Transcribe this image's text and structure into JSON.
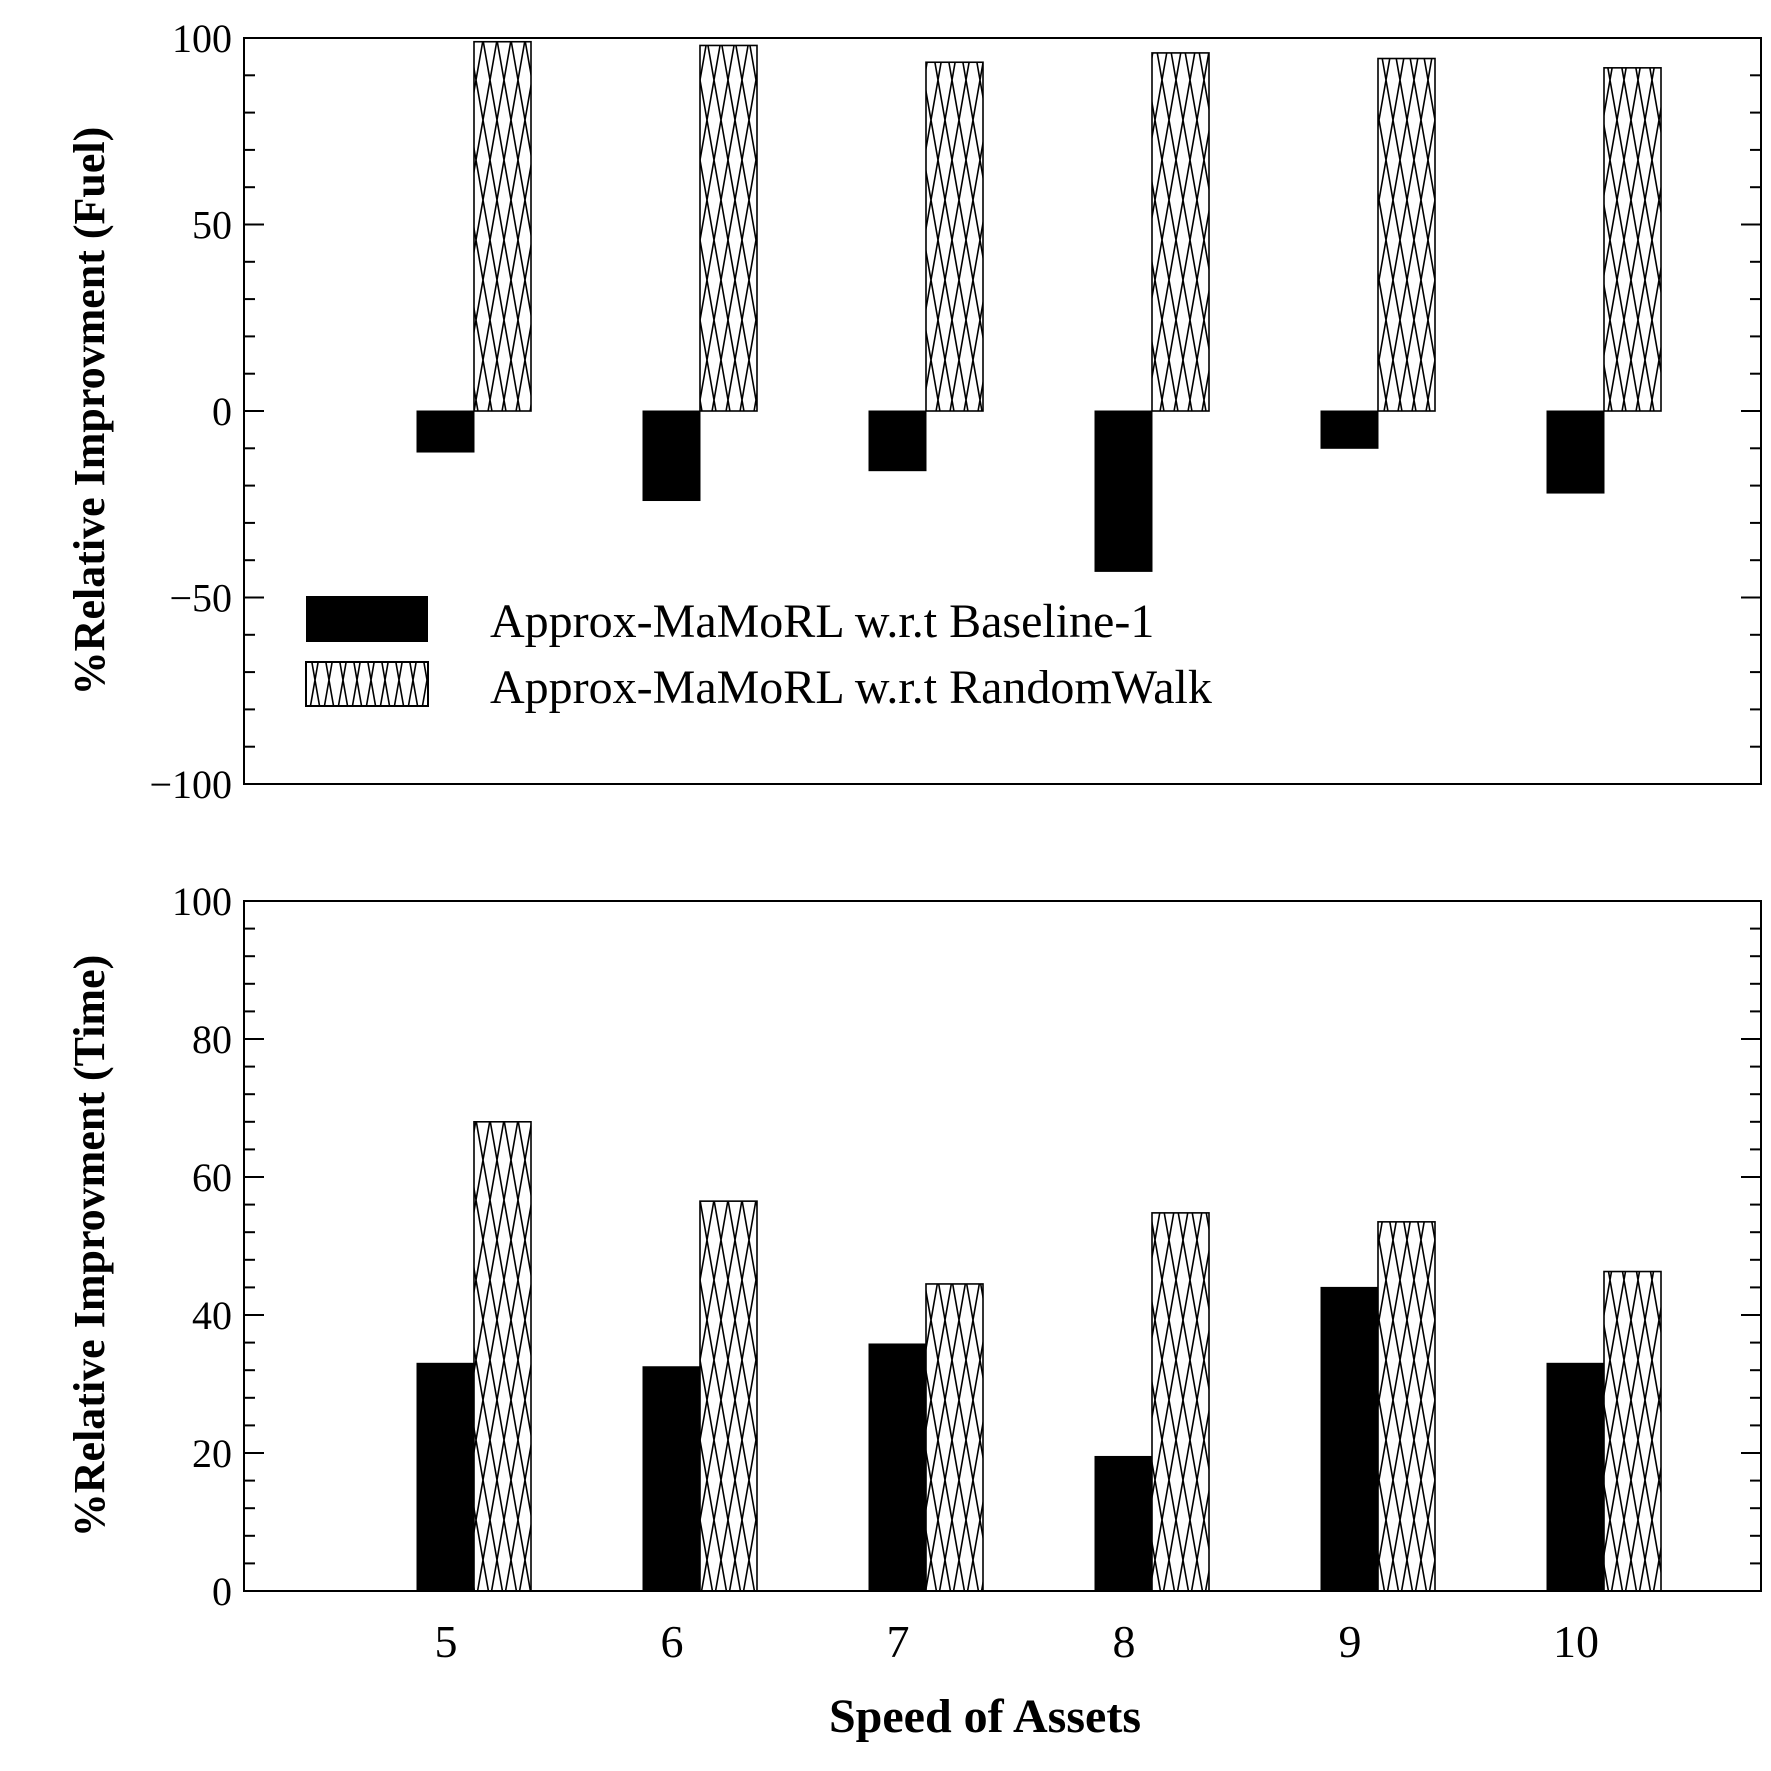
{
  "chart_data": [
    {
      "type": "bar",
      "categories": [
        "5",
        "6",
        "7",
        "8",
        "9",
        "10"
      ],
      "xlabel": "",
      "ylabel": "%Relative Improvment (Fuel)",
      "ylim": [
        -100,
        100
      ],
      "yticks": [
        "100",
        "50",
        "0",
        "−50",
        "−100"
      ],
      "ytick_values": [
        100,
        50,
        0,
        -50,
        -100
      ],
      "series": [
        {
          "name": "Approx-MaMoRL w.r.t Baseline-1",
          "values": [
            -11,
            -24,
            -16,
            -43,
            -10,
            -22
          ]
        },
        {
          "name": "Approx-MaMoRL w.r.t RandomWalk",
          "values": [
            99,
            98,
            93.5,
            96,
            94.5,
            92
          ]
        }
      ],
      "legend_position": "lower-left"
    },
    {
      "type": "bar",
      "categories": [
        "5",
        "6",
        "7",
        "8",
        "9",
        "10"
      ],
      "xlabel": "Speed of Assets",
      "ylabel": "%Relative Improvment (Time)",
      "ylim": [
        0,
        100
      ],
      "yticks": [
        "100",
        "80",
        "60",
        "40",
        "20",
        "0"
      ],
      "ytick_values": [
        100,
        80,
        60,
        40,
        20,
        0
      ],
      "series": [
        {
          "name": "Approx-MaMoRL w.r.t Baseline-1",
          "values": [
            33,
            32.5,
            35.8,
            19.5,
            44,
            33
          ]
        },
        {
          "name": "Approx-MaMoRL w.r.t RandomWalk",
          "values": [
            68,
            56.5,
            44.5,
            54.8,
            53.5,
            46.3
          ]
        }
      ]
    }
  ],
  "colors": {
    "baseline": "#000000",
    "randomwalk_fill": "#ffffff",
    "hatch": "#000000"
  }
}
